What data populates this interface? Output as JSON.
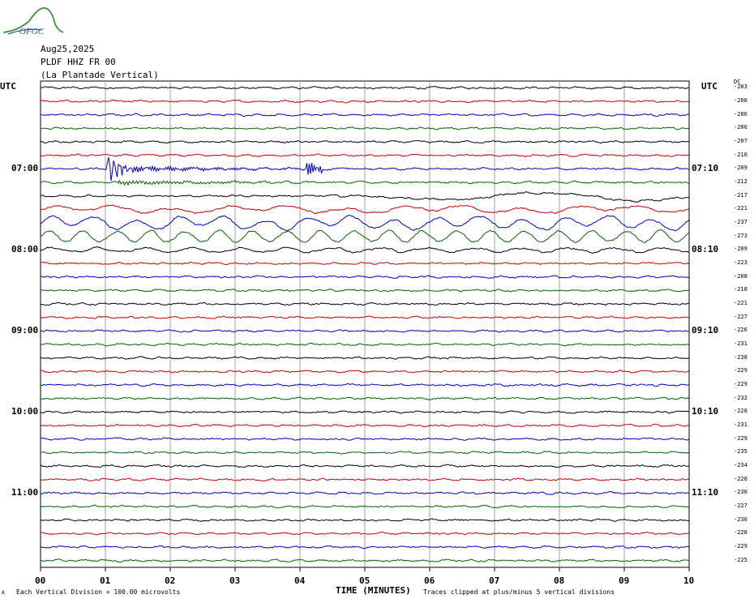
{
  "header": {
    "logo_text": "OFGC",
    "date": "Aug25,2025",
    "station": "PLDF HHZ FR 00",
    "location": "(La Plantade Vertical)"
  },
  "axis": {
    "utc_left": "UTC",
    "utc_right": "UTC",
    "dc_label": "DC",
    "xlabel": "TIME (MINUTES)",
    "xticks": [
      "00",
      "01",
      "02",
      "03",
      "04",
      "05",
      "06",
      "07",
      "08",
      "09",
      "10"
    ]
  },
  "footer": {
    "left_mark": "A",
    "scale_note": "Each Vertical Division = 100.00 microvolts",
    "clip_note": "Traces clipped at plus/minus 5 vertical divisions"
  },
  "chart_data": {
    "type": "line",
    "title": "",
    "xlabel": "TIME (MINUTES)",
    "xlim": [
      0,
      10
    ],
    "trace_count": 36,
    "trace_minutes": 10,
    "colors": [
      "#000000",
      "#cc0000",
      "#0000cc",
      "#006600"
    ],
    "left_time_labels": [
      {
        "row": 6,
        "text": "07:00"
      },
      {
        "row": 12,
        "text": "08:00"
      },
      {
        "row": 18,
        "text": "09:00"
      },
      {
        "row": 24,
        "text": "10:00"
      },
      {
        "row": 30,
        "text": "11:00"
      }
    ],
    "right_time_labels": [
      {
        "row": 6,
        "text": "07:10"
      },
      {
        "row": 12,
        "text": "08:10"
      },
      {
        "row": 18,
        "text": "09:10"
      },
      {
        "row": 24,
        "text": "10:10"
      },
      {
        "row": 30,
        "text": "11:10"
      }
    ],
    "dc_offsets": [
      -203,
      -206,
      -206,
      -206,
      -207,
      -210,
      -209,
      -212,
      -217,
      -221,
      -237,
      -273,
      -209,
      -223,
      -208,
      -218,
      -221,
      -227,
      -226,
      -231,
      -238,
      -229,
      -229,
      -232,
      -228,
      -231,
      -229,
      -235,
      -234,
      -228,
      -230,
      -227,
      -230,
      -228,
      -229,
      -225
    ],
    "events": [
      {
        "row": 6,
        "start_minute": 1.02,
        "note": "impulsive arrival, large amplitude decaying over ~4 min"
      },
      {
        "row": 7,
        "start_minute": 1.2,
        "note": "moderate coda"
      },
      {
        "row": 8,
        "start_minute": 5,
        "note": "long-period wander"
      },
      {
        "row": 9,
        "start_minute": 0,
        "note": "long-period oscillations"
      },
      {
        "row": 10,
        "start_minute": 0,
        "note": "large long-period oscillations"
      },
      {
        "row": 11,
        "start_minute": 0,
        "note": "long-period oscillations"
      }
    ]
  }
}
